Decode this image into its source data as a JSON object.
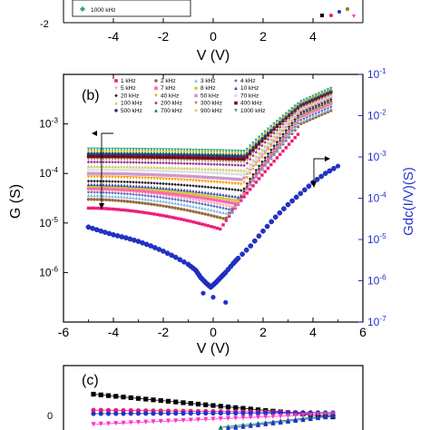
{
  "chart_data": [
    {
      "panel": "a",
      "type": "scatter",
      "note": "top panel, cropped",
      "xlabel": "V (V)",
      "xticks": [
        "-4",
        "-2",
        "0",
        "2",
        "4"
      ],
      "yticks": [
        "-2"
      ],
      "legend_visible": [
        "1000 kHz"
      ],
      "xlim": [
        -6,
        6
      ]
    },
    {
      "panel": "b",
      "panel_label": "(b)",
      "type": "scatter",
      "xlabel": "V (V)",
      "ylabel_left": "G (S)",
      "ylabel_right": "Gdc(I/V)(S)",
      "xlim": [
        -6,
        6
      ],
      "ylim_left": [
        1e-07,
        0.01
      ],
      "ylim_right": [
        1e-07,
        0.1
      ],
      "yscale": "log",
      "xticks": [
        "-6",
        "-4",
        "-2",
        "0",
        "2",
        "4",
        "6"
      ],
      "yticks_left": [
        "10-6",
        "10-5",
        "10-4",
        "10-3"
      ],
      "yticks_right": [
        "10-7",
        "10-6",
        "10-5",
        "10-4",
        "10-3",
        "10-2",
        "10-1"
      ],
      "legend_position": "top-left",
      "legend": [
        "1 kHz",
        "2 kHz",
        "3 kHz",
        "4 kHz",
        "5 kHz",
        "7 kHz",
        "8 kHz",
        "10 kHz",
        "20 kHz",
        "40 kHz",
        "50 kHz",
        "70 kHz",
        "100 kHz",
        "200 kHz",
        "300 kHz",
        "400 kHz",
        "500 kHz",
        "700 kHz",
        "900 kHz",
        "1000 kHz"
      ],
      "series": [
        {
          "name": "1 kHz",
          "color": "#ee1c7a",
          "g_at_minus5": 2e-05,
          "g_at_min": 7.5e-06,
          "v_min": 0.3,
          "g_at_plus35": 0.0007
        },
        {
          "name": "2 kHz",
          "color": "#9a6a3a",
          "g_at_minus5": 3e-05,
          "g_at_min": 1.2e-05,
          "v_min": 0.5,
          "g_at_plus35": 0.001
        },
        {
          "name": "3 kHz",
          "color": "#7db3e3",
          "g_at_minus5": 3.6e-05,
          "g_at_min": 1.5e-05,
          "v_min": 0.7,
          "g_at_plus35": 0.0011
        },
        {
          "name": "4 kHz",
          "color": "#5070c0",
          "g_at_minus5": 4.2e-05,
          "g_at_min": 1.8e-05,
          "v_min": 0.8,
          "g_at_plus35": 0.0012
        },
        {
          "name": "5 kHz",
          "color": "#f2a0c0",
          "g_at_minus5": 4.5e-05,
          "g_at_min": 2e-05,
          "v_min": 0.9,
          "g_at_plus35": 0.0013
        },
        {
          "name": "7 kHz",
          "color": "#ff66aa",
          "g_at_minus5": 5e-05,
          "g_at_min": 2.4e-05,
          "v_min": 1.0,
          "g_at_plus35": 0.0014
        },
        {
          "name": "8 kHz",
          "color": "#c8c83c",
          "g_at_minus5": 5.5e-05,
          "g_at_min": 2.8e-05,
          "v_min": 1.0,
          "g_at_plus35": 0.0015
        },
        {
          "name": "10 kHz",
          "color": "#4444aa",
          "g_at_minus5": 6e-05,
          "g_at_min": 3.3e-05,
          "v_min": 1.1,
          "g_at_plus35": 0.0016
        },
        {
          "name": "20 kHz",
          "color": "#222222",
          "g_at_minus5": 7e-05,
          "g_at_min": 4.5e-05,
          "v_min": 1.2,
          "g_at_plus35": 0.0017
        },
        {
          "name": "40 kHz",
          "color": "#ff9900",
          "g_at_minus5": 8.5e-05,
          "g_at_min": 6e-05,
          "v_min": 1.2,
          "g_at_plus35": 0.0018
        },
        {
          "name": "50 kHz",
          "color": "#cc99cc",
          "g_at_minus5": 0.0001,
          "g_at_min": 7.5e-05,
          "v_min": 1.2,
          "g_at_plus35": 0.0019
        },
        {
          "name": "70 kHz",
          "color": "#e0e0e0",
          "g_at_minus5": 0.00012,
          "g_at_min": 9.5e-05,
          "v_min": 1.3,
          "g_at_plus35": 0.002
        },
        {
          "name": "100 kHz",
          "color": "#cccc66",
          "g_at_minus5": 0.00014,
          "g_at_min": 0.000115,
          "v_min": 1.3,
          "g_at_plus35": 0.0021
        },
        {
          "name": "200 kHz",
          "color": "#993399",
          "g_at_minus5": 0.00017,
          "g_at_min": 0.000145,
          "v_min": 1.3,
          "g_at_plus35": 0.0022
        },
        {
          "name": "300 kHz",
          "color": "#aa8866",
          "g_at_minus5": 0.000195,
          "g_at_min": 0.00017,
          "v_min": 1.3,
          "g_at_plus35": 0.0023
        },
        {
          "name": "400 kHz",
          "color": "#7a0a0a",
          "g_at_minus5": 0.00022,
          "g_at_min": 0.000195,
          "v_min": 1.3,
          "g_at_plus35": 0.0024
        },
        {
          "name": "500 kHz",
          "color": "#3a2a80",
          "g_at_minus5": 0.000245,
          "g_at_min": 0.00022,
          "v_min": 1.3,
          "g_at_plus35": 0.0025
        },
        {
          "name": "700 kHz",
          "color": "#0d6a60",
          "g_at_minus5": 0.00027,
          "g_at_min": 0.000245,
          "v_min": 1.3,
          "g_at_plus35": 0.0026
        },
        {
          "name": "900 kHz",
          "color": "#e0d020",
          "g_at_minus5": 0.00029,
          "g_at_min": 0.000265,
          "v_min": 1.3,
          "g_at_plus35": 0.0027
        },
        {
          "name": "1000 kHz",
          "color": "#35a090",
          "g_at_minus5": 0.00031,
          "g_at_min": 0.00028,
          "v_min": 1.3,
          "g_at_plus35": 0.0028
        }
      ],
      "gdc_series": {
        "axis": "right",
        "color": "#2233cc",
        "points": [
          [
            -5.0,
            2e-05
          ],
          [
            -4.5,
            1.6e-05
          ],
          [
            -4.0,
            1.3e-05
          ],
          [
            -3.5,
            1.1e-05
          ],
          [
            -3.0,
            9e-06
          ],
          [
            -2.5,
            7e-06
          ],
          [
            -2.0,
            5.2e-06
          ],
          [
            -1.5,
            3.7e-06
          ],
          [
            -1.0,
            2.5e-06
          ],
          [
            -0.7,
            1.8e-06
          ],
          [
            -0.5,
            1.2e-06
          ],
          [
            -0.3,
            9e-07
          ],
          [
            -0.1,
            7e-07
          ],
          [
            0.1,
            9e-07
          ],
          [
            0.3,
            1.2e-06
          ],
          [
            0.5,
            1.6e-06
          ],
          [
            0.8,
            2.6e-06
          ],
          [
            1.0,
            3.5e-06
          ],
          [
            1.5,
            7e-06
          ],
          [
            2.0,
            1.6e-05
          ],
          [
            2.5,
            3.5e-05
          ],
          [
            3.0,
            7e-05
          ],
          [
            3.5,
            0.00013
          ],
          [
            4.0,
            0.00024
          ],
          [
            4.5,
            0.0004
          ],
          [
            5.0,
            0.0006
          ]
        ]
      }
    },
    {
      "panel": "c",
      "panel_label": "(c)",
      "type": "line",
      "note": "bottom panel, cropped",
      "yticks": [
        "0"
      ]
    }
  ]
}
